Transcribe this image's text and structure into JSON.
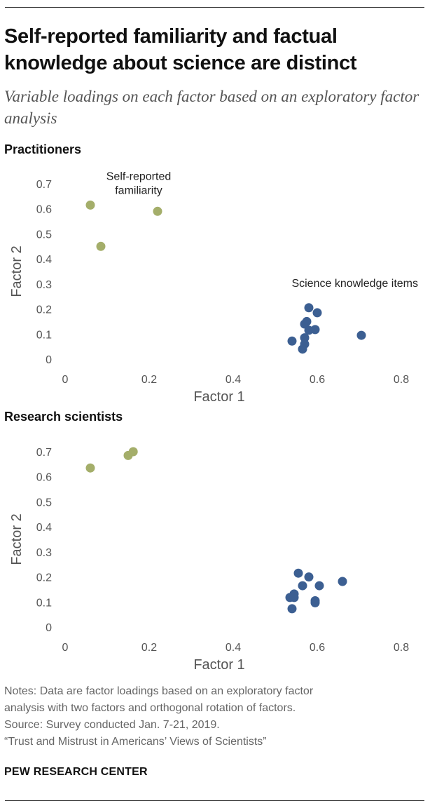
{
  "title": "Self-reported familiarity and factual knowledge about science are distinct",
  "subtitle": "Variable loadings on each factor based on an exploratory factor analysis",
  "colors": {
    "familiarity": "#a4ae6a",
    "knowledge": "#3c5f92"
  },
  "chart_data": [
    {
      "type": "scatter",
      "title": "Practitioners",
      "xlabel": "Factor 1",
      "ylabel": "Factor 2",
      "xlim": [
        0,
        0.8
      ],
      "ylim": [
        0,
        0.7
      ],
      "xticks": [
        "0",
        "0.2",
        "0.4",
        "0.6",
        "0.8"
      ],
      "yticks": [
        "0",
        "0.1",
        "0.2",
        "0.3",
        "0.4",
        "0.5",
        "0.6",
        "0.7"
      ],
      "annotations": [
        {
          "text": [
            "Self-reported",
            "familiarity"
          ],
          "series": "Self-reported familiarity"
        },
        {
          "text": [
            "Science knowledge items"
          ],
          "series": "Science knowledge items"
        }
      ],
      "series": [
        {
          "name": "Self-reported familiarity",
          "color": "#a4ae6a",
          "points": [
            [
              0.06,
              0.615
            ],
            [
              0.085,
              0.45
            ],
            [
              0.22,
              0.59
            ]
          ]
        },
        {
          "name": "Science knowledge items",
          "color": "#3c5f92",
          "points": [
            [
              0.58,
              0.205
            ],
            [
              0.6,
              0.185
            ],
            [
              0.575,
              0.15
            ],
            [
              0.57,
              0.14
            ],
            [
              0.58,
              0.115
            ],
            [
              0.595,
              0.118
            ],
            [
              0.57,
              0.085
            ],
            [
              0.57,
              0.06
            ],
            [
              0.54,
              0.072
            ],
            [
              0.565,
              0.04
            ],
            [
              0.705,
              0.095
            ]
          ]
        }
      ]
    },
    {
      "type": "scatter",
      "title": "Research scientists",
      "xlabel": "Factor 1",
      "ylabel": "Factor 2",
      "xlim": [
        0,
        0.8
      ],
      "ylim": [
        0,
        0.7
      ],
      "xticks": [
        "0",
        "0.2",
        "0.4",
        "0.6",
        "0.8"
      ],
      "yticks": [
        "0",
        "0.1",
        "0.2",
        "0.3",
        "0.4",
        "0.5",
        "0.6",
        "0.7"
      ],
      "annotations": [],
      "series": [
        {
          "name": "Self-reported familiarity",
          "color": "#a4ae6a",
          "points": [
            [
              0.06,
              0.635
            ],
            [
              0.15,
              0.685
            ],
            [
              0.162,
              0.7
            ]
          ]
        },
        {
          "name": "Science knowledge items",
          "color": "#3c5f92",
          "points": [
            [
              0.555,
              0.215
            ],
            [
              0.58,
              0.2
            ],
            [
              0.565,
              0.165
            ],
            [
              0.605,
              0.165
            ],
            [
              0.66,
              0.182
            ],
            [
              0.545,
              0.132
            ],
            [
              0.535,
              0.118
            ],
            [
              0.545,
              0.118
            ],
            [
              0.595,
              0.105
            ],
            [
              0.595,
              0.097
            ],
            [
              0.54,
              0.073
            ]
          ]
        }
      ]
    }
  ],
  "notes": [
    "Notes: Data are factor loadings based on an exploratory factor",
    "analysis with two factors and orthogonal rotation of factors.",
    "Source: Survey conducted Jan. 7-21, 2019.",
    "“Trust and Mistrust in Americans’ Views of Scientists”"
  ],
  "brand": "PEW RESEARCH CENTER"
}
